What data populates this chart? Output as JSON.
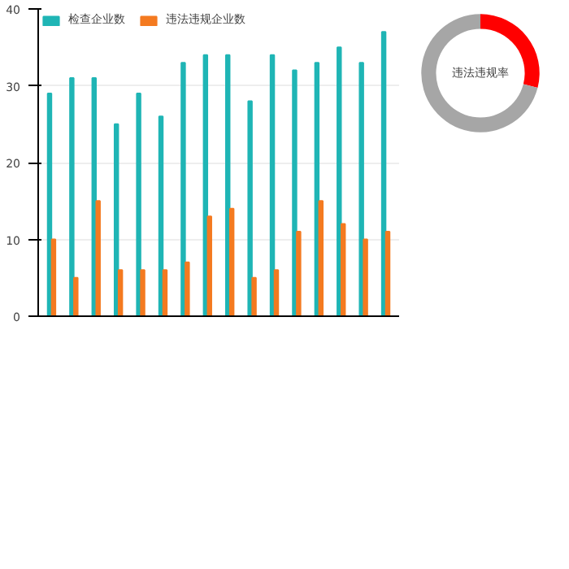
{
  "chart_data": [
    {
      "type": "bar",
      "categories": [
        null,
        null,
        null,
        null,
        null,
        null,
        null,
        null,
        null,
        null,
        null,
        null,
        null,
        null,
        null,
        null
      ],
      "series": [
        {
          "name": "检查企业数",
          "color": "#1fb5b5",
          "values": [
            29,
            31,
            31,
            25,
            29,
            26,
            33,
            34,
            34,
            28,
            34,
            32,
            33,
            35,
            33,
            37
          ]
        },
        {
          "name": "违法违规企业数",
          "color": "#f47a20",
          "values": [
            10,
            5,
            15,
            6,
            6,
            6,
            7,
            13,
            14,
            5,
            6,
            11,
            15,
            12,
            10,
            11
          ]
        }
      ],
      "ylim": [
        0,
        40
      ],
      "yticks": [
        0,
        10,
        20,
        30,
        40
      ],
      "grid": "y",
      "legend": "top left"
    },
    {
      "type": "donut",
      "categories": [
        null,
        null
      ],
      "values": [
        29,
        71
      ],
      "colors": [
        "#ff0000",
        "#a6a6a6"
      ],
      "annotations": [
        "违法违规率"
      ]
    }
  ]
}
